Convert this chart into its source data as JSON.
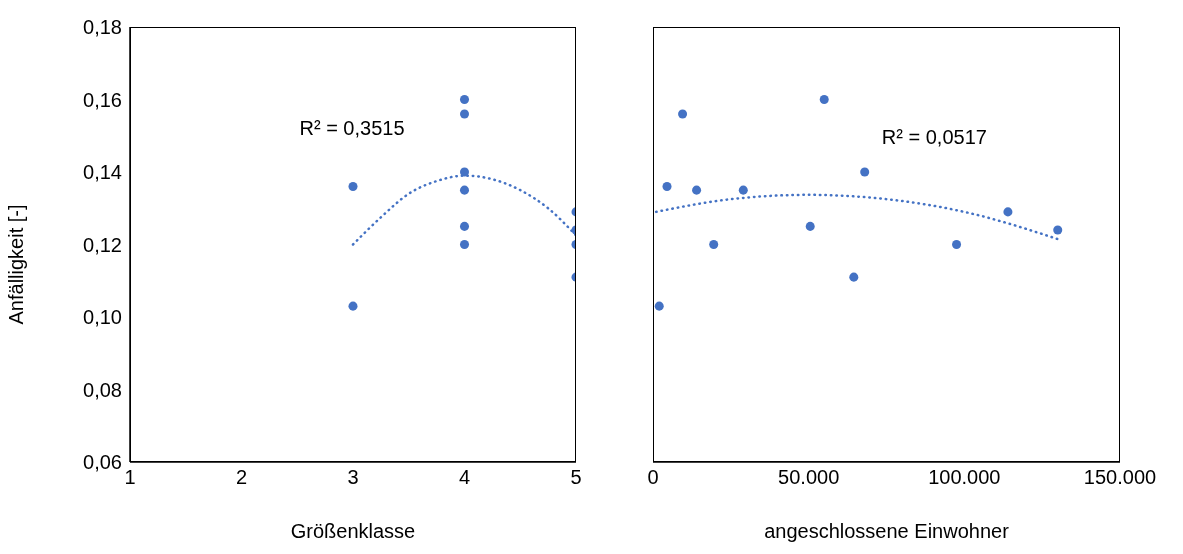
{
  "chart_data": [
    {
      "type": "scatter",
      "xlabel": "Größenklasse",
      "ylabel": "Anfälligkeit [-]",
      "xlim": [
        1,
        5
      ],
      "xticks": [
        1,
        2,
        3,
        4,
        5
      ],
      "ylim": [
        0.06,
        0.18
      ],
      "yticks": [
        {
          "value": 0.06,
          "label": "0,06"
        },
        {
          "value": 0.08,
          "label": "0,08"
        },
        {
          "value": 0.1,
          "label": "0,10"
        },
        {
          "value": 0.12,
          "label": "0,12"
        },
        {
          "value": 0.14,
          "label": "0,14"
        },
        {
          "value": 0.16,
          "label": "0,16"
        },
        {
          "value": 0.18,
          "label": "0,18"
        }
      ],
      "annotations": [
        "R² = 0,3515"
      ],
      "series": [
        {
          "type": "scatter",
          "color": "#4472c4",
          "marker": "circle",
          "x": [
            3,
            3,
            4,
            4,
            4,
            4,
            4,
            4,
            5,
            5,
            5,
            5
          ],
          "values": [
            0.136,
            0.103,
            0.16,
            0.156,
            0.14,
            0.135,
            0.125,
            0.12,
            0.129,
            0.124,
            0.12,
            0.111
          ]
        },
        {
          "type": "line",
          "color": "#4472c4",
          "marker": "none",
          "line_style": "dotted",
          "x": [
            3,
            3.25,
            3.5,
            3.75,
            4,
            4.25,
            4.5,
            4.75,
            5
          ],
          "values": [
            0.12,
            0.1275,
            0.134,
            0.1375,
            0.139,
            0.138,
            0.135,
            0.13,
            0.1225
          ]
        }
      ]
    },
    {
      "type": "scatter",
      "xlabel": "angeschlossene Einwohner",
      "xlim": [
        0,
        150000
      ],
      "xticks": [
        0,
        {
          "value": 50000,
          "label": "50.000"
        },
        {
          "value": 100000,
          "label": "100.000"
        },
        {
          "value": 150000,
          "label": "150.000"
        }
      ],
      "ylim": [
        0.06,
        0.18
      ],
      "tick_labels": "x",
      "annotations": [
        "R² = 0,0517"
      ],
      "series": [
        {
          "type": "scatter",
          "color": "#4472c4",
          "marker": "circle",
          "x": [
            2000,
            4500,
            9500,
            14000,
            19500,
            29000,
            50500,
            55000,
            64500,
            68000,
            97500,
            114000,
            130000
          ],
          "values": [
            0.103,
            0.136,
            0.156,
            0.135,
            0.12,
            0.135,
            0.125,
            0.16,
            0.111,
            0.14,
            0.12,
            0.129,
            0.124
          ]
        },
        {
          "type": "line",
          "color": "#4472c4",
          "marker": "none",
          "line_style": "dotted",
          "x": [
            1000,
            25000,
            50000,
            75000,
            100000,
            130000
          ],
          "values": [
            0.129,
            0.1325,
            0.1337,
            0.1325,
            0.129,
            0.1215
          ]
        }
      ]
    }
  ]
}
